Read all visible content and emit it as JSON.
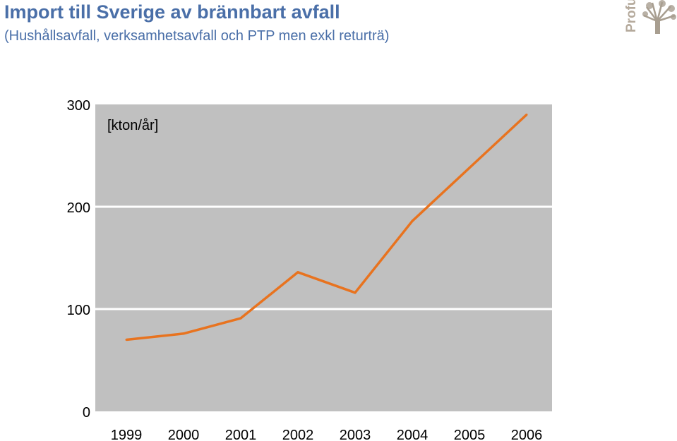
{
  "header": {
    "title": "Import till Sverige av brännbart avfall",
    "subtitle": "(Hushållsavfall, verksamhetsavfall och PTP men exkl returträ)"
  },
  "logo": {
    "text": "Profu",
    "icon": "tree-icon",
    "color": "#b5aa9c"
  },
  "colors": {
    "plot_background": "#c0c0c0",
    "gridline": "#ffffff",
    "series": "#e8731f",
    "title": "#4a6fa8"
  },
  "chart_data": {
    "type": "line",
    "title": "Import till Sverige av brännbart avfall",
    "subtitle": "(Hushållsavfall, verksamhetsavfall och PTP men exkl returträ)",
    "xlabel": "",
    "ylabel": "[kton/år]",
    "categories": [
      "1999",
      "2000",
      "2001",
      "2002",
      "2003",
      "2004",
      "2005",
      "2006"
    ],
    "series": [
      {
        "values": [
          70,
          76,
          91,
          136,
          116,
          186,
          238,
          290
        ]
      }
    ],
    "ylim": [
      0,
      300
    ],
    "yticks": [
      0,
      100,
      200,
      300
    ],
    "grid": true,
    "legend": "none"
  }
}
